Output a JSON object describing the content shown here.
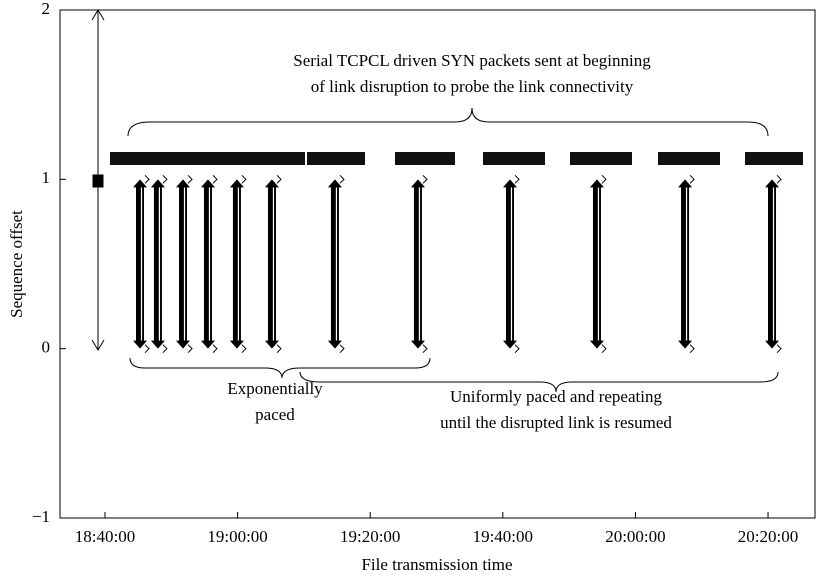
{
  "chart_data": {
    "type": "sequence",
    "xlabel": "File transmission time",
    "ylabel": "Sequence offset",
    "x": [
      "18:45:17",
      "18:47:59",
      "18:51:46",
      "18:55:32",
      "18:59:54",
      "19:05:11",
      "19:14:41",
      "19:27:12",
      "19:41:05",
      "19:54:12",
      "20:07:29",
      "20:20:36"
    ],
    "values": [
      1,
      1,
      1,
      1,
      1,
      1,
      1,
      1,
      1,
      1,
      1,
      1
    ],
    "color": "#000000",
    "xlim": [
      "18:33:13",
      "20:27:05"
    ],
    "xticks": [
      "18:40:00",
      "19:00:00",
      "19:20:00",
      "19:40:00",
      "20:00:00",
      "20:20:00"
    ],
    "ylim": [
      -1,
      2
    ],
    "yticks": [
      {
        "value": -1,
        "label": "−1"
      },
      0,
      1,
      2
    ],
    "annotations": [
      "Serial TCPCL driven SYN packets sent at beginning",
      "of link disruption to probe the link connectivity",
      "Exponentially",
      "paced",
      "Uniformly paced and repeating",
      "until the disrupted link is resumed"
    ]
  }
}
